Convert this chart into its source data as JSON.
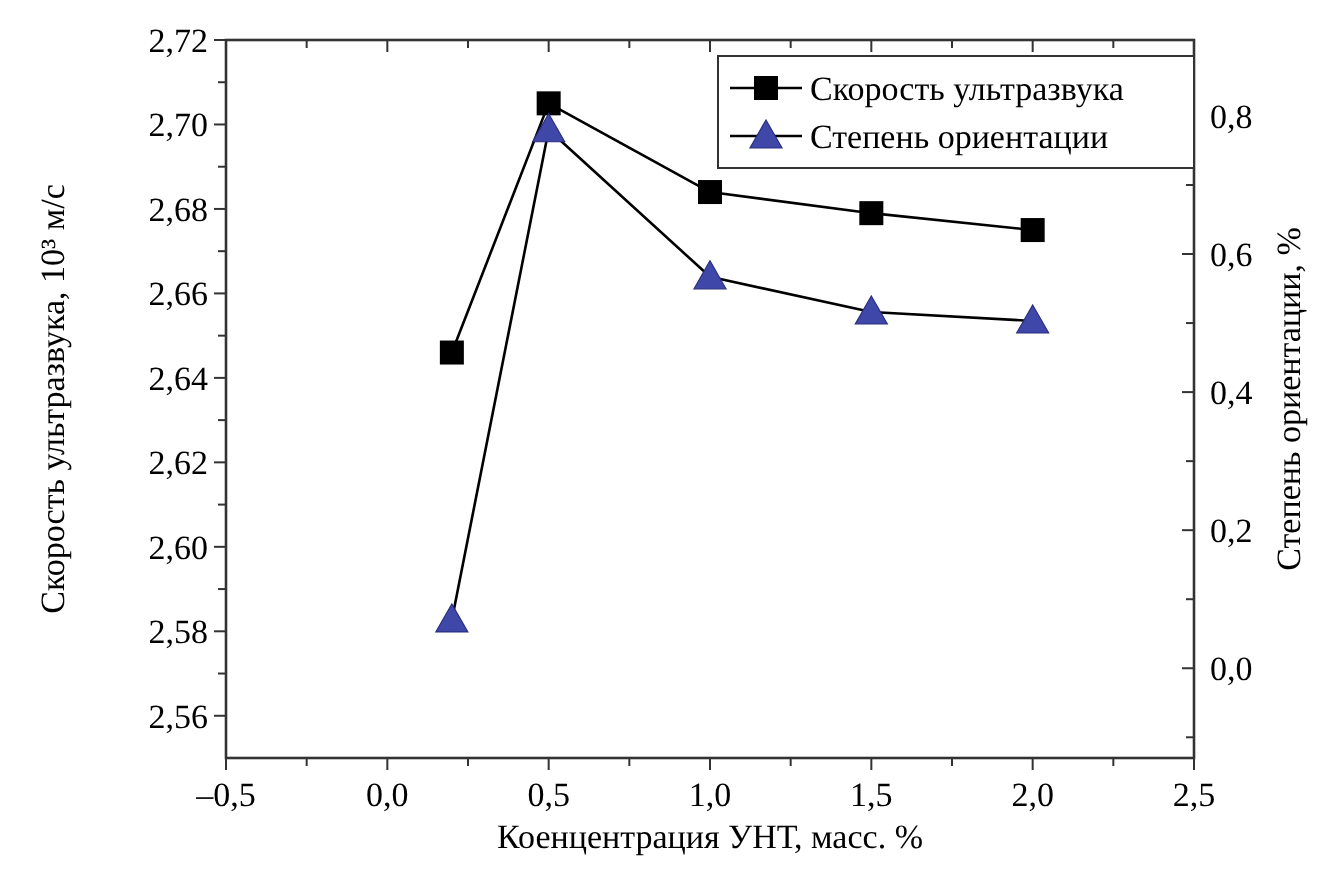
{
  "chart_data": {
    "type": "line",
    "xlabel": "Коенцентрация УНТ, масс. %",
    "ylabel": "Скорость ультразвука, 10³ м/с",
    "y2label": "Степень ориентации, %",
    "xlim": [
      -0.5,
      2.5
    ],
    "xticks": [
      {
        "value": -0.5,
        "label": "–0,5"
      },
      {
        "value": -0.25,
        "label": null
      },
      {
        "value": 0,
        "label": "0,0"
      },
      {
        "value": 0.25,
        "label": null
      },
      {
        "value": 0.5,
        "label": "0,5"
      },
      {
        "value": 0.75,
        "label": null
      },
      {
        "value": 1,
        "label": "1,0"
      },
      {
        "value": 1.25,
        "label": null
      },
      {
        "value": 1.5,
        "label": "1,5"
      },
      {
        "value": 1.75,
        "label": null
      },
      {
        "value": 2,
        "label": "2,0"
      },
      {
        "value": 2.25,
        "label": null
      },
      {
        "value": 2.5,
        "label": "2,5"
      }
    ],
    "ylim": [
      2.55,
      2.72
    ],
    "yticks": [
      {
        "value": 2.56,
        "label": "2,56"
      },
      {
        "value": 2.57,
        "label": null
      },
      {
        "value": 2.58,
        "label": "2,58"
      },
      {
        "value": 2.59,
        "label": null
      },
      {
        "value": 2.6,
        "label": "2,60"
      },
      {
        "value": 2.61,
        "label": null
      },
      {
        "value": 2.62,
        "label": "2,62"
      },
      {
        "value": 2.63,
        "label": null
      },
      {
        "value": 2.64,
        "label": "2,64"
      },
      {
        "value": 2.65,
        "label": null
      },
      {
        "value": 2.66,
        "label": "2,66"
      },
      {
        "value": 2.67,
        "label": null
      },
      {
        "value": 2.68,
        "label": "2,68"
      },
      {
        "value": 2.69,
        "label": null
      },
      {
        "value": 2.7,
        "label": "2,70"
      },
      {
        "value": 2.71,
        "label": null
      },
      {
        "value": 2.72,
        "label": "2,72"
      }
    ],
    "y2lim": [
      -0.13,
      0.91
    ],
    "y2ticks": [
      {
        "value": -0.1,
        "label": null
      },
      {
        "value": 0,
        "label": "0,0"
      },
      {
        "value": 0.1,
        "label": null
      },
      {
        "value": 0.2,
        "label": "0,2"
      },
      {
        "value": 0.3,
        "label": null
      },
      {
        "value": 0.4,
        "label": "0,4"
      },
      {
        "value": 0.5,
        "label": null
      },
      {
        "value": 0.6,
        "label": "0,6"
      },
      {
        "value": 0.7,
        "label": null
      },
      {
        "value": 0.8,
        "label": "0,8"
      }
    ],
    "x": [
      0.2,
      0.5,
      1.0,
      1.5,
      2.0
    ],
    "legend": "top right",
    "grid": false,
    "line_style": "solid",
    "series": [
      {
        "name": "Скорость ультразвука",
        "color": "#000000",
        "marker": "square",
        "values": [
          2.646,
          2.705,
          2.684,
          2.679,
          2.675
        ]
      },
      {
        "name": "Степень ориентации",
        "color": "#3f48a8",
        "marker": "triangle",
        "axis": "y2",
        "values": [
          0.07,
          0.78,
          0.567,
          0.516,
          0.503
        ]
      }
    ]
  }
}
